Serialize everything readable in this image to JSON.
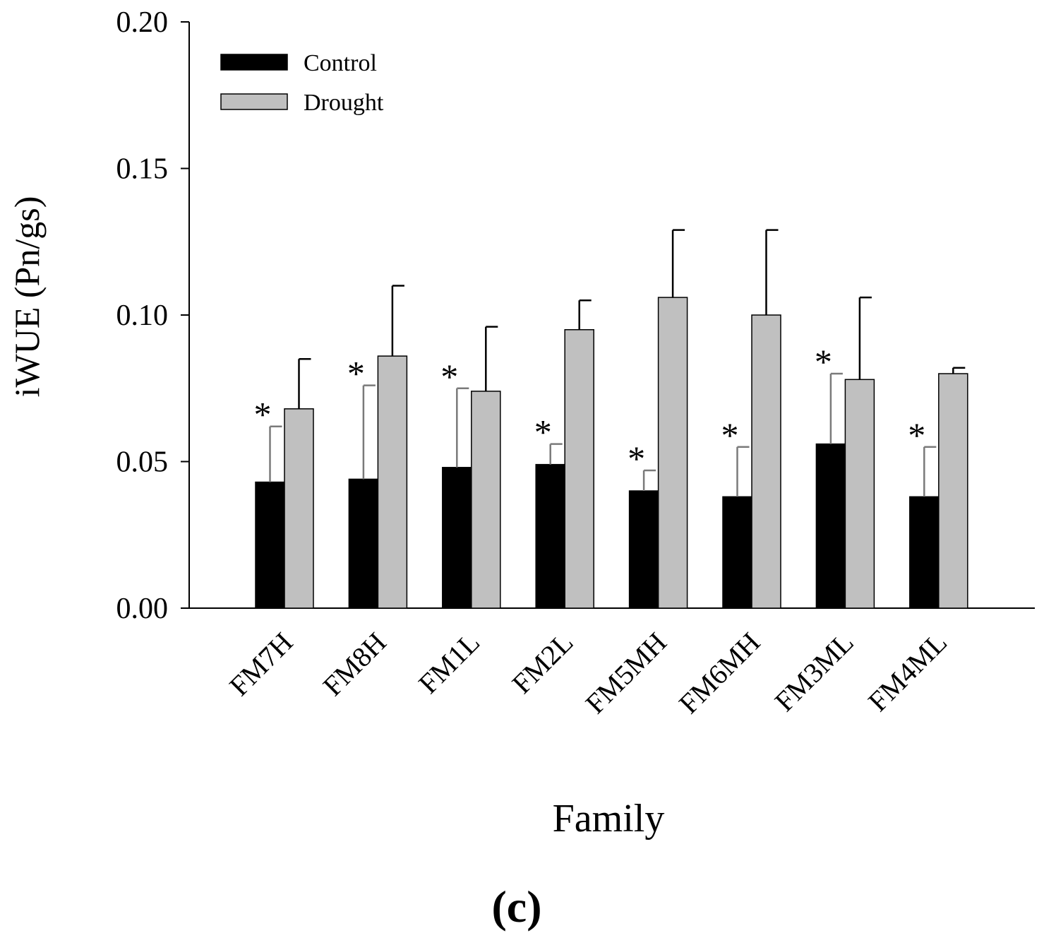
{
  "panel_label": "(c)",
  "chart_data": {
    "type": "bar",
    "title": "",
    "xlabel": "Family",
    "ylabel": "iWUE (Pn/gs)",
    "ylim": [
      0,
      0.2
    ],
    "yticks": [
      "0.00",
      "0.05",
      "0.10",
      "0.15",
      "0.20"
    ],
    "categories": [
      "FM7H",
      "FM8H",
      "FM1L",
      "FM2L",
      "FM5MH",
      "FM6MH",
      "FM3ML",
      "FM4ML"
    ],
    "series": [
      {
        "name": "Control",
        "color": "#000000",
        "values": [
          0.043,
          0.044,
          0.048,
          0.049,
          0.04,
          0.038,
          0.056,
          0.038
        ],
        "errors": [
          0.019,
          0.032,
          0.027,
          0.007,
          0.007,
          0.017,
          0.024,
          0.017
        ]
      },
      {
        "name": "Drought",
        "color": "#c0c0c0",
        "values": [
          0.068,
          0.086,
          0.074,
          0.095,
          0.106,
          0.1,
          0.078,
          0.08
        ],
        "errors": [
          0.017,
          0.024,
          0.022,
          0.01,
          0.023,
          0.029,
          0.028,
          0.002
        ]
      }
    ],
    "significance_marker": "*",
    "significant": [
      true,
      true,
      true,
      true,
      true,
      true,
      true,
      true
    ],
    "legend_position": "top-left",
    "grid": false
  }
}
